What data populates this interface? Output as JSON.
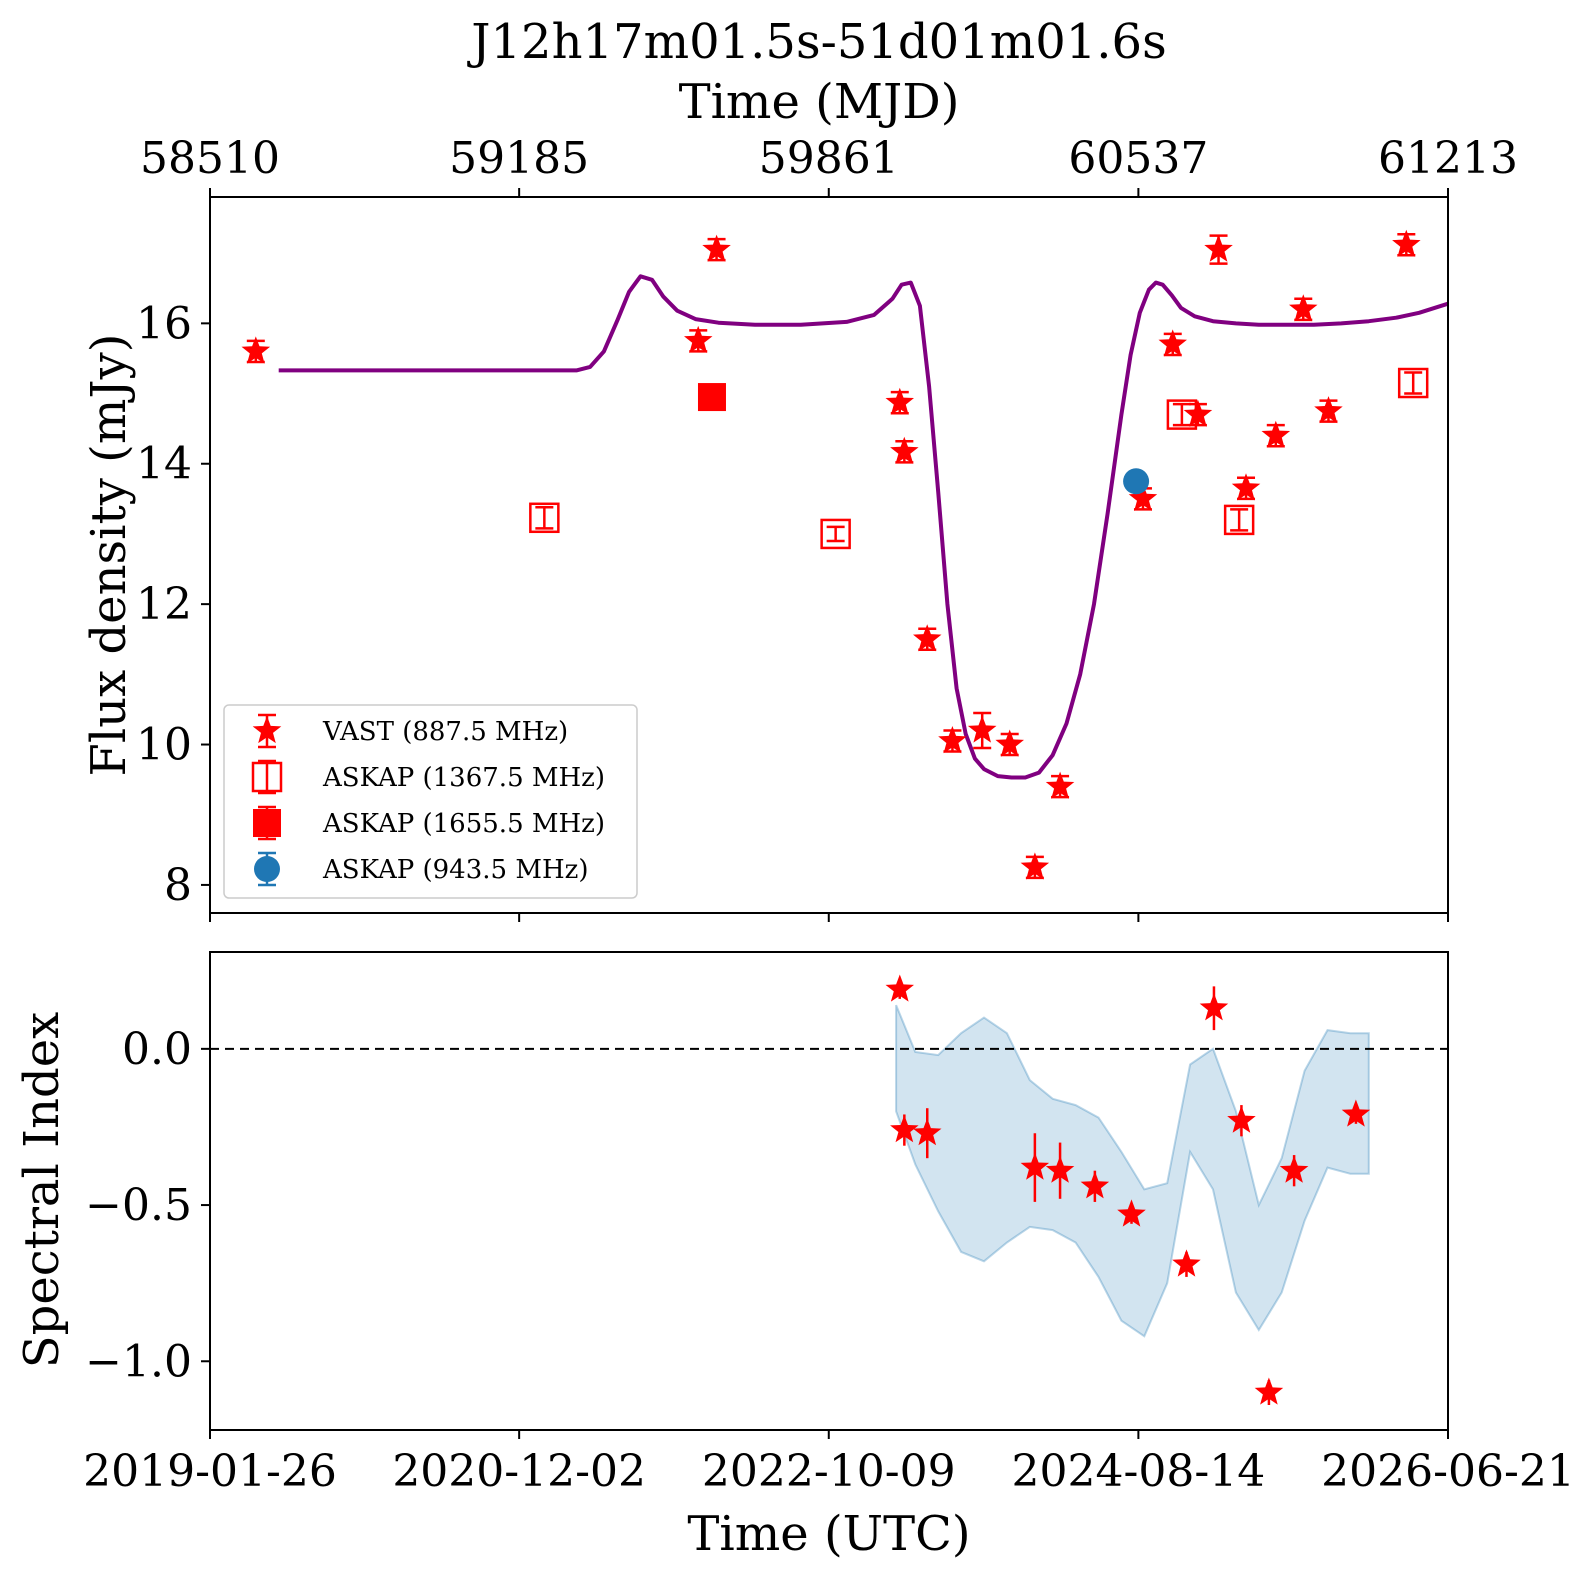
{
  "colors": {
    "vast": "#ff0000",
    "askap": "#ff0000",
    "askap_943": "#1f77b4",
    "model_curve": "#800080",
    "band_fill": "#1f77b4",
    "zero_line": "#000000"
  },
  "chart_data": [
    {
      "type": "scatter",
      "panel": "flux",
      "title": "J12h17m01.5s-51d01m01.6s",
      "xlabel_top": "Time (MJD)",
      "xlabel": "",
      "ylabel": "Flux density (mJy)",
      "xlim_mjd": [
        58510,
        61213
      ],
      "ylim": [
        7.6,
        17.8
      ],
      "x_ticks_mjd": [
        58510,
        59185,
        59861,
        60537,
        61213
      ],
      "x_tick_labels_top": [
        "58510",
        "59185",
        "59861",
        "60537",
        "61213"
      ],
      "y_ticks": [
        8,
        10,
        12,
        14,
        16
      ],
      "y_tick_labels": [
        "8",
        "10",
        "12",
        "14",
        "16"
      ],
      "grid": false,
      "legend_position": "lower-left",
      "series": [
        {
          "name": "VAST (887.5 MHz)",
          "marker": "star",
          "color": "#ff0000",
          "points": [
            {
              "x": 58610,
              "y": 15.6,
              "err": 0.15
            },
            {
              "x": 59576,
              "y": 15.75,
              "err": 0.15
            },
            {
              "x": 59616,
              "y": 17.05,
              "err": 0.15
            },
            {
              "x": 60016,
              "y": 14.87,
              "err": 0.15
            },
            {
              "x": 60026,
              "y": 14.17,
              "err": 0.15
            },
            {
              "x": 60076,
              "y": 11.5,
              "err": 0.15
            },
            {
              "x": 60131,
              "y": 10.05,
              "err": 0.15
            },
            {
              "x": 60196,
              "y": 10.2,
              "err": 0.25
            },
            {
              "x": 60256,
              "y": 10.0,
              "err": 0.15
            },
            {
              "x": 60311,
              "y": 8.25,
              "err": 0.15
            },
            {
              "x": 60366,
              "y": 9.4,
              "err": 0.15
            },
            {
              "x": 60547,
              "y": 13.5,
              "err": 0.15
            },
            {
              "x": 60612,
              "y": 15.7,
              "err": 0.15
            },
            {
              "x": 60667,
              "y": 14.7,
              "err": 0.15
            },
            {
              "x": 60712,
              "y": 17.05,
              "err": 0.2
            },
            {
              "x": 60772,
              "y": 13.65,
              "err": 0.15
            },
            {
              "x": 60837,
              "y": 14.4,
              "err": 0.15
            },
            {
              "x": 60897,
              "y": 16.2,
              "err": 0.15
            },
            {
              "x": 60952,
              "y": 14.75,
              "err": 0.15
            },
            {
              "x": 61122,
              "y": 17.12,
              "err": 0.15
            }
          ]
        },
        {
          "name": "ASKAP (1367.5 MHz)",
          "marker": "open-square",
          "color": "#ff0000",
          "points": [
            {
              "x": 59240,
              "y": 13.23,
              "err": 0.15
            },
            {
              "x": 59876,
              "y": 13.0,
              "err": 0.1
            },
            {
              "x": 60632,
              "y": 14.7,
              "err": 0.15
            },
            {
              "x": 60757,
              "y": 13.2,
              "err": 0.15
            },
            {
              "x": 61137,
              "y": 15.15,
              "err": 0.15
            }
          ]
        },
        {
          "name": "ASKAP (1655.5 MHz)",
          "marker": "filled-square",
          "color": "#ff0000",
          "points": [
            {
              "x": 59606,
              "y": 14.95,
              "err": 0.15
            }
          ]
        },
        {
          "name": "ASKAP (943.5 MHz)",
          "marker": "circle",
          "color": "#1f77b4",
          "points": [
            {
              "x": 60532,
              "y": 13.75,
              "err": 0.1
            }
          ]
        }
      ],
      "model_curve": {
        "color": "#800080",
        "x": [
          58660,
          58760,
          58860,
          58960,
          59060,
          59160,
          59260,
          59310,
          59340,
          59370,
          59400,
          59425,
          59450,
          59475,
          59500,
          59530,
          59570,
          59620,
          59700,
          59800,
          59900,
          59960,
          60000,
          60020,
          60040,
          60060,
          60080,
          60100,
          60120,
          60140,
          60160,
          60180,
          60200,
          60230,
          60260,
          60290,
          60320,
          60350,
          60380,
          60410,
          60440,
          60470,
          60500,
          60520,
          60540,
          60560,
          60575,
          60590,
          60610,
          60630,
          60660,
          60700,
          60750,
          60800,
          60860,
          60920,
          60980,
          61040,
          61100,
          61150,
          61213
        ],
        "y": [
          15.33,
          15.33,
          15.33,
          15.33,
          15.33,
          15.33,
          15.33,
          15.33,
          15.38,
          15.6,
          16.05,
          16.45,
          16.67,
          16.62,
          16.38,
          16.18,
          16.06,
          16.01,
          15.98,
          15.98,
          16.02,
          16.12,
          16.35,
          16.55,
          16.58,
          16.25,
          15.1,
          13.6,
          12.0,
          10.8,
          10.15,
          9.8,
          9.65,
          9.55,
          9.53,
          9.53,
          9.6,
          9.85,
          10.3,
          11.0,
          12.0,
          13.3,
          14.7,
          15.55,
          16.15,
          16.48,
          16.58,
          16.55,
          16.4,
          16.22,
          16.1,
          16.03,
          16.0,
          15.98,
          15.98,
          15.98,
          16.0,
          16.03,
          16.08,
          16.15,
          16.28
        ]
      }
    },
    {
      "type": "scatter",
      "panel": "spectral_index",
      "xlabel": "Time (UTC)",
      "ylabel": "Spectral Index",
      "xlim_mjd": [
        58510,
        61213
      ],
      "ylim": [
        -1.22,
        0.31
      ],
      "x_ticks_mjd": [
        58510,
        59185,
        59861,
        60537,
        61213
      ],
      "x_tick_labels": [
        "2019-01-26",
        "2020-12-02",
        "2022-10-09",
        "2024-08-14",
        "2026-06-21"
      ],
      "y_ticks": [
        0.0,
        -0.5,
        -1.0
      ],
      "y_tick_labels": [
        "0.0",
        "−0.5",
        "−1.0"
      ],
      "grid": false,
      "zero_line": {
        "y": 0.0,
        "style": "dashed",
        "color": "#000000"
      },
      "series": [
        {
          "marker": "star",
          "color": "#ff0000",
          "points": [
            {
              "x": 60016,
              "y": 0.19,
              "err": 0.03
            },
            {
              "x": 60026,
              "y": -0.26,
              "err": 0.05
            },
            {
              "x": 60076,
              "y": -0.27,
              "err": 0.08
            },
            {
              "x": 60311,
              "y": -0.38,
              "err": 0.11
            },
            {
              "x": 60366,
              "y": -0.39,
              "err": 0.09
            },
            {
              "x": 60442,
              "y": -0.44,
              "err": 0.05
            },
            {
              "x": 60522,
              "y": -0.53,
              "err": 0.03
            },
            {
              "x": 60642,
              "y": -0.69,
              "err": 0.04
            },
            {
              "x": 60702,
              "y": 0.13,
              "err": 0.07
            },
            {
              "x": 60762,
              "y": -0.23,
              "err": 0.05
            },
            {
              "x": 60822,
              "y": -1.1,
              "err": 0.04
            },
            {
              "x": 60877,
              "y": -0.39,
              "err": 0.05
            },
            {
              "x": 61012,
              "y": -0.21,
              "err": 0.03
            }
          ]
        }
      ],
      "band": {
        "color": "#1f77b4",
        "opacity": 0.2,
        "x": [
          60008,
          60050,
          60100,
          60150,
          60200,
          60250,
          60300,
          60350,
          60400,
          60450,
          60500,
          60550,
          60600,
          60650,
          60700,
          60750,
          60800,
          60850,
          60900,
          60950,
          61000,
          61040
        ],
        "upper": [
          0.14,
          -0.01,
          -0.02,
          0.05,
          0.1,
          0.05,
          -0.1,
          -0.16,
          -0.18,
          -0.22,
          -0.33,
          -0.45,
          -0.43,
          -0.05,
          0.0,
          -0.2,
          -0.5,
          -0.35,
          -0.07,
          0.06,
          0.05,
          0.05
        ],
        "lower": [
          -0.2,
          -0.37,
          -0.52,
          -0.65,
          -0.68,
          -0.62,
          -0.57,
          -0.58,
          -0.62,
          -0.73,
          -0.87,
          -0.92,
          -0.75,
          -0.33,
          -0.45,
          -0.78,
          -0.9,
          -0.78,
          -0.55,
          -0.38,
          -0.4,
          -0.4
        ]
      }
    }
  ]
}
